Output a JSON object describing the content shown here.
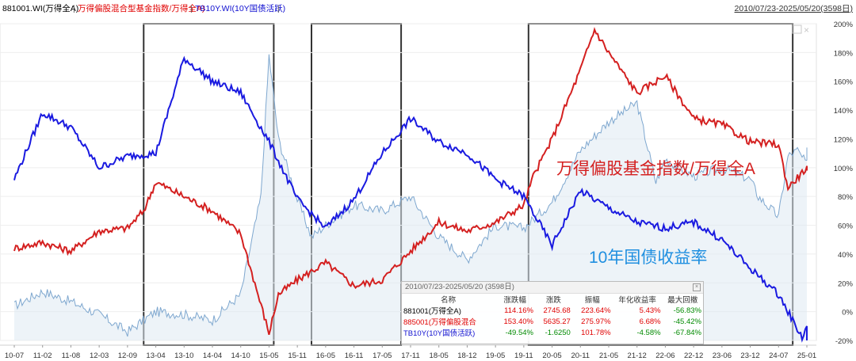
{
  "header": {
    "legend": [
      {
        "label": "881001.WI(万得全A)",
        "color": "#000000"
      },
      {
        "label": "万得偏股混合型基金指数/万得全A)",
        "color": "#e00000"
      },
      {
        "label": "TB10Y.WI(10Y国债活跃)",
        "color": "#1010d0"
      }
    ],
    "separator": "|",
    "date_range": "2010/07/23-2025/05/20(3598日)"
  },
  "chart_data": {
    "type": "line",
    "x_ticks": [
      "10-07",
      "11-02",
      "11-08",
      "12-03",
      "12-09",
      "13-04",
      "13-10",
      "14-04",
      "14-10",
      "15-05",
      "15-11",
      "16-05",
      "16-11",
      "17-05",
      "17-11",
      "18-05",
      "18-12",
      "19-05",
      "19-11",
      "20-05",
      "20-11",
      "21-05",
      "21-12",
      "22-06",
      "22-12",
      "23-06",
      "23-12",
      "24-07",
      "25-01"
    ],
    "y_ticks": [
      "200%",
      "180%",
      "160%",
      "140%",
      "120%",
      "100%",
      "80%",
      "60%",
      "40%",
      "20%",
      "0%",
      "-20%"
    ],
    "ylim": [
      -20,
      200
    ],
    "annotations": [
      "万得偏股基金指数/万得全A",
      "10年国债收益率"
    ],
    "highlight_windows": [
      [
        "13-01",
        "15-06"
      ],
      [
        "16-02",
        "17-09"
      ],
      [
        "19-12",
        "24-10"
      ]
    ],
    "series": [
      {
        "name": "881001.WI(万得全A)",
        "color": "#7ea7cf",
        "x": [
          "10-07",
          "11-02",
          "11-08",
          "12-03",
          "12-09",
          "13-04",
          "13-10",
          "14-04",
          "14-10",
          "15-03",
          "15-05",
          "15-07",
          "15-11",
          "16-02",
          "16-05",
          "16-11",
          "17-05",
          "17-11",
          "18-05",
          "18-12",
          "19-05",
          "19-11",
          "20-05",
          "20-11",
          "21-05",
          "21-12",
          "22-04",
          "22-06",
          "22-12",
          "23-06",
          "23-12",
          "24-02",
          "24-07",
          "24-09",
          "24-11",
          "25-01",
          "25-05"
        ],
        "values": [
          4,
          14,
          7,
          -2,
          -14,
          0,
          -2,
          -6,
          12,
          80,
          178,
          120,
          78,
          52,
          60,
          74,
          70,
          80,
          52,
          36,
          60,
          58,
          76,
          112,
          132,
          145,
          90,
          106,
          94,
          100,
          92,
          80,
          66,
          108,
          112,
          102,
          114
        ]
      },
      {
        "name": "万得偏股混合型基金指数/万得全A)",
        "color": "#d42020",
        "x": [
          "10-07",
          "11-02",
          "11-08",
          "12-03",
          "12-09",
          "13-01",
          "13-04",
          "13-10",
          "14-04",
          "14-10",
          "15-05",
          "15-07",
          "15-11",
          "16-05",
          "16-11",
          "17-05",
          "17-11",
          "18-05",
          "18-12",
          "19-05",
          "19-11",
          "20-01",
          "20-05",
          "20-11",
          "21-02",
          "21-05",
          "21-12",
          "22-06",
          "22-12",
          "23-06",
          "23-12",
          "24-07",
          "24-09",
          "25-01",
          "25-05"
        ],
        "values": [
          44,
          48,
          42,
          56,
          58,
          70,
          90,
          80,
          70,
          54,
          -15,
          12,
          22,
          34,
          18,
          22,
          42,
          62,
          56,
          62,
          74,
          94,
          120,
          168,
          196,
          180,
          152,
          164,
          134,
          130,
          118,
          116,
          86,
          100,
          98
        ]
      },
      {
        "name": "TB10Y.WI(10Y国债活跃)",
        "color": "#1a1ae0",
        "x": [
          "10-07",
          "11-02",
          "11-08",
          "12-03",
          "12-09",
          "13-04",
          "13-10",
          "14-04",
          "14-10",
          "15-05",
          "15-11",
          "16-05",
          "16-11",
          "17-05",
          "17-11",
          "18-05",
          "18-12",
          "19-05",
          "19-11",
          "20-05",
          "20-11",
          "21-05",
          "21-12",
          "22-06",
          "22-12",
          "23-06",
          "23-12",
          "24-07",
          "24-12",
          "25-01",
          "25-05"
        ],
        "values": [
          92,
          138,
          128,
          100,
          108,
          110,
          176,
          160,
          152,
          118,
          78,
          58,
          78,
          110,
          134,
          118,
          110,
          92,
          80,
          46,
          84,
          72,
          62,
          58,
          62,
          50,
          30,
          12,
          -18,
          -10,
          -20
        ]
      }
    ]
  },
  "stats_panel": {
    "title": "2010/07/23-2025/05/20 (3598日)",
    "close_icon": "close-icon",
    "columns": [
      "名称",
      "涨跌幅",
      "涨跌",
      "振幅",
      "年化收益率",
      "最大回撤"
    ],
    "rows": [
      {
        "name": "881001(万得全A)",
        "name_color": "#000000",
        "change_pct": "114.16%",
        "change": "2745.68",
        "amplitude": "223.64%",
        "annual": "5.43%",
        "max_dd": "-56.83%",
        "signs": [
          "pos",
          "pos",
          "pos",
          "pos",
          "neg"
        ]
      },
      {
        "name": "885001(万得偏股混合",
        "name_color": "#e00000",
        "change_pct": "153.40%",
        "change": "5635.27",
        "amplitude": "275.97%",
        "annual": "6.68%",
        "max_dd": "-45.42%",
        "signs": [
          "pos",
          "pos",
          "pos",
          "pos",
          "neg"
        ]
      },
      {
        "name": "TB10Y(10Y国债活跃)",
        "name_color": "#1010d0",
        "change_pct": "-49.54%",
        "change": "-1.6250",
        "amplitude": "101.78%",
        "annual": "-4.58%",
        "max_dd": "-67.84%",
        "signs": [
          "neg",
          "neg",
          "pos",
          "neg",
          "neg"
        ]
      }
    ]
  }
}
